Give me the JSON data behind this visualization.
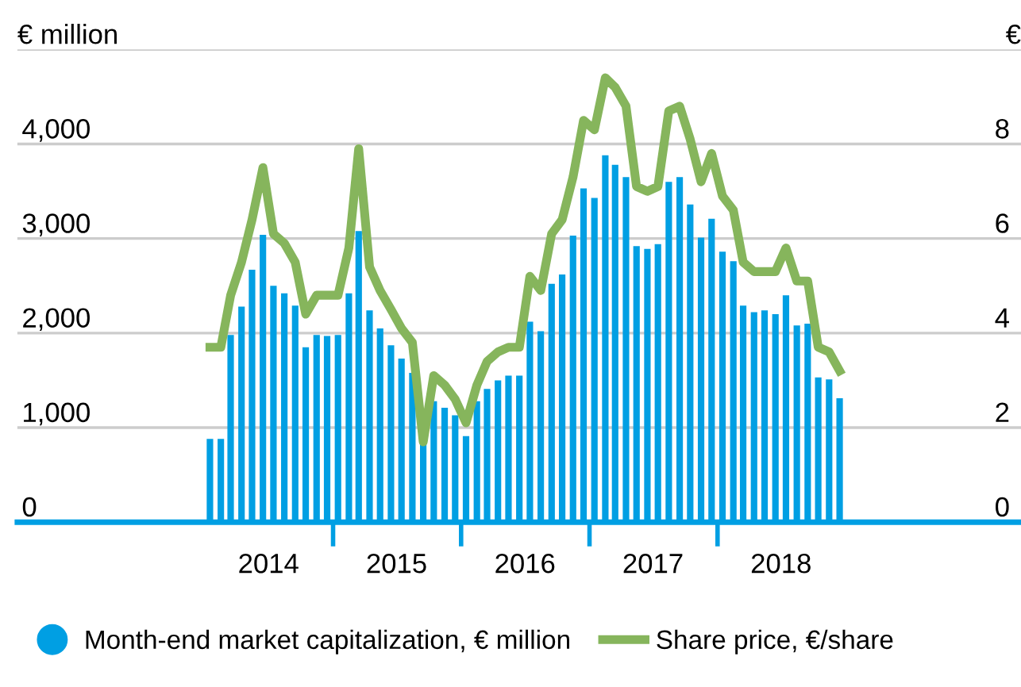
{
  "chart_data": {
    "type": "bar",
    "ylabel": "€ million",
    "y2label": "€",
    "x": [
      "2014-01-15",
      "2014-02-15",
      "2014-03-15",
      "2014-04-15",
      "2014-05-15",
      "2014-06-15",
      "2014-07-15",
      "2014-08-15",
      "2014-09-15",
      "2014-10-15",
      "2014-11-15",
      "2014-12-15",
      "2015-01-15",
      "2015-02-15",
      "2015-03-15",
      "2015-04-15",
      "2015-05-15",
      "2015-06-15",
      "2015-07-15",
      "2015-08-15",
      "2015-09-15",
      "2015-10-15",
      "2015-11-15",
      "2015-12-15",
      "2016-01-15",
      "2016-02-15",
      "2016-03-15",
      "2016-04-15",
      "2016-05-15",
      "2016-06-15",
      "2016-07-15",
      "2016-08-15",
      "2016-09-15",
      "2016-10-15",
      "2016-11-15",
      "2016-12-15",
      "2017-01-15",
      "2017-02-15",
      "2017-03-15",
      "2017-04-15",
      "2017-05-15",
      "2017-06-15",
      "2017-07-15",
      "2017-08-15",
      "2017-09-15",
      "2017-10-15",
      "2017-11-15",
      "2017-12-15",
      "2018-01-15",
      "2018-02-15",
      "2018-03-15",
      "2018-04-15",
      "2018-05-15",
      "2018-06-15",
      "2018-07-15",
      "2018-08-15",
      "2018-09-15",
      "2018-10-15",
      "2018-11-15",
      "2018-12-15"
    ],
    "series": [
      {
        "name": "Month-end market capitalization, € million",
        "color": "#009fe3",
        "values": [
          880,
          880,
          1980,
          2280,
          2670,
          3040,
          2500,
          2420,
          2290,
          1850,
          1980,
          1970,
          1980,
          2420,
          3080,
          2240,
          2050,
          1870,
          1730,
          1580,
          850,
          1280,
          1210,
          1130,
          910,
          1280,
          1410,
          1500,
          1550,
          1550,
          2120,
          2020,
          2520,
          2620,
          3030,
          3530,
          3430,
          3880,
          3780,
          3650,
          2920,
          2890,
          2940,
          3600,
          3650,
          3360,
          3010,
          3210,
          2860,
          2760,
          2290,
          2220,
          2240,
          2200,
          2400,
          2080,
          2100,
          1530,
          1510,
          1310
        ]
      },
      {
        "name": "Share price, €/share",
        "type": "line",
        "axis": "y2",
        "color": "#86b55c",
        "values": [
          3.7,
          3.7,
          4.8,
          5.5,
          6.4,
          7.5,
          6.1,
          5.9,
          5.5,
          4.4,
          4.8,
          4.8,
          4.8,
          5.8,
          7.9,
          5.4,
          4.9,
          4.5,
          4.1,
          3.8,
          1.7,
          3.1,
          2.9,
          2.6,
          2.1,
          2.9,
          3.4,
          3.6,
          3.7,
          3.7,
          5.2,
          4.9,
          6.1,
          6.4,
          7.3,
          8.5,
          8.3,
          9.4,
          9.2,
          8.8,
          7.1,
          7.0,
          7.1,
          8.7,
          8.8,
          8.1,
          7.2,
          7.8,
          6.9,
          6.6,
          5.5,
          5.3,
          5.3,
          5.3,
          5.8,
          5.1,
          5.1,
          3.7,
          3.6,
          3.2
        ]
      }
    ],
    "xlim": [
      "2012-07-15",
      "2020-05-15"
    ],
    "xticks": [
      {
        "value": "2014-07-01",
        "label": "2014"
      },
      {
        "value": "2015-01-01",
        "label": null
      },
      {
        "value": "2015-07-01",
        "label": "2015"
      },
      {
        "value": "2016-01-01",
        "label": null
      },
      {
        "value": "2016-07-01",
        "label": "2016"
      },
      {
        "value": "2017-01-01",
        "label": null
      },
      {
        "value": "2017-07-01",
        "label": "2017"
      },
      {
        "value": "2018-01-01",
        "label": null
      },
      {
        "value": "2018-07-01",
        "label": "2018"
      }
    ],
    "ylim": [
      0,
      5000
    ],
    "yticks": [
      0,
      {
        "value": 1000,
        "label": "1,000"
      },
      {
        "value": 2000,
        "label": "2,000"
      },
      {
        "value": 3000,
        "label": "3,000"
      },
      {
        "value": 4000,
        "label": "4,000"
      },
      {
        "value": 5000,
        "label": null
      }
    ],
    "y2lim": [
      0,
      10
    ],
    "y2ticks": [
      0,
      2,
      4,
      6,
      8,
      {
        "value": 10,
        "label": null
      }
    ],
    "grid": "y",
    "legend": "bottom",
    "marker": "none",
    "line_style": "solid"
  }
}
